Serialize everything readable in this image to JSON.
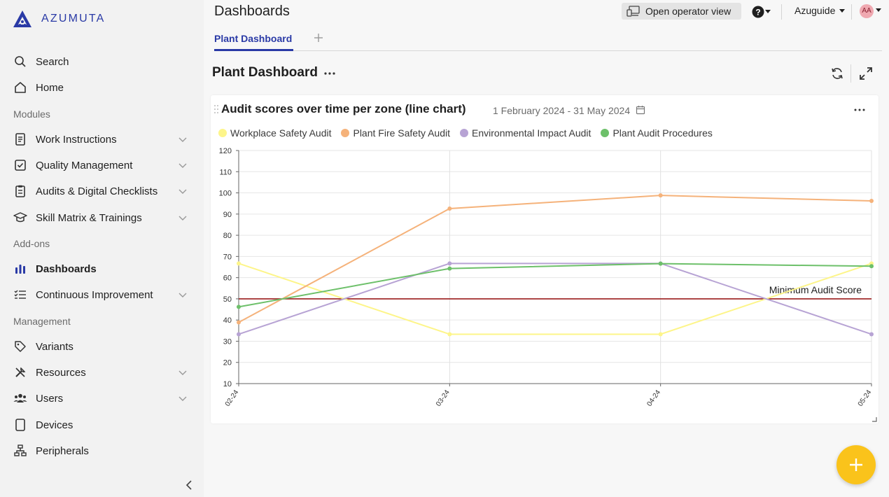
{
  "app": {
    "logo_text": "AZUMUTA"
  },
  "sidebar": {
    "items": [
      {
        "label": "Search",
        "icon": "search-icon"
      },
      {
        "label": "Home",
        "icon": "home-icon"
      },
      {
        "label": "Work Instructions",
        "icon": "document-icon"
      },
      {
        "label": "Quality Management",
        "icon": "clipboard-check-icon"
      },
      {
        "label": "Audits & Digital Checklists",
        "icon": "clipboard-list-icon"
      },
      {
        "label": "Skill Matrix & Trainings",
        "icon": "graduation-cap-icon"
      },
      {
        "label": "Dashboards",
        "icon": "bar-chart-icon"
      },
      {
        "label": "Continuous Improvement",
        "icon": "checklist-icon"
      },
      {
        "label": "Variants",
        "icon": "tag-icon"
      },
      {
        "label": "Resources",
        "icon": "tools-icon"
      },
      {
        "label": "Users",
        "icon": "users-icon"
      },
      {
        "label": "Devices",
        "icon": "tablet-icon"
      },
      {
        "label": "Peripherals",
        "icon": "network-icon"
      }
    ],
    "sections": {
      "modules": "Modules",
      "addons": "Add-ons",
      "management": "Management"
    }
  },
  "header": {
    "title": "Dashboards",
    "operator_view": "Open operator view",
    "org": "Azuguide",
    "avatar_initials": "AA"
  },
  "tabs": [
    {
      "label": "Plant Dashboard"
    }
  ],
  "dashboard": {
    "title": "Plant Dashboard"
  },
  "card": {
    "title": "Audit scores over time per zone (line chart)",
    "range": "1 February 2024 - 31 May 2024"
  },
  "chart_data": {
    "type": "line",
    "x": [
      "02-24",
      "03-24",
      "04-24",
      "05-24"
    ],
    "ylim": [
      10,
      120
    ],
    "yticks": [
      10,
      20,
      30,
      40,
      50,
      60,
      70,
      80,
      90,
      100,
      110,
      120
    ],
    "grid": true,
    "legend_placement": "top-left",
    "series": [
      {
        "name": "Workplace Safety Audit",
        "color": "#fdf58a",
        "values": [
          66.7,
          33.3,
          33.3,
          66.7
        ]
      },
      {
        "name": "Plant Fire Safety Audit",
        "color": "#f5b27a",
        "values": [
          38.9,
          92.6,
          98.8,
          96.2
        ]
      },
      {
        "name": "Environmental Impact Audit",
        "color": "#b7a3d4",
        "values": [
          33.3,
          66.7,
          66.7,
          33.3
        ]
      },
      {
        "name": "Plant Audit Procedures",
        "color": "#6dc06a",
        "values": [
          46.2,
          64.3,
          66.6,
          65.4
        ]
      }
    ],
    "reference_line": {
      "label": "Minimum Audit Score",
      "value": 50,
      "color": "#9b1c1c"
    }
  }
}
